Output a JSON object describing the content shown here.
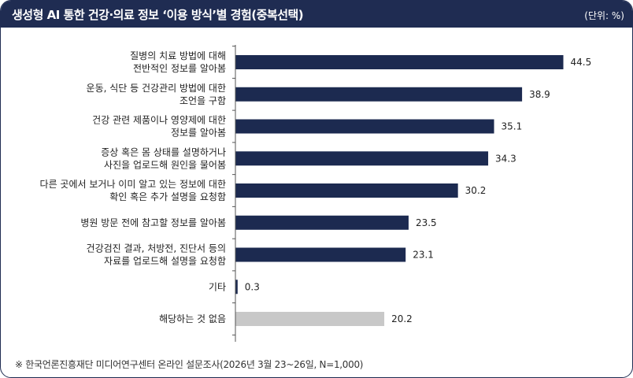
{
  "header": {
    "title": "생성형 AI 통한 건강·의료 정보 ‘이용 방식’별 경험(중복선택)",
    "unit": "(단위: %)"
  },
  "chart_data": {
    "type": "bar",
    "orientation": "horizontal",
    "title": "생성형 AI 통한 건강·의료 정보 ‘이용 방식’별 경험(중복선택)",
    "unit": "(단위: %)",
    "xlim": [
      0,
      50
    ],
    "categories": [
      [
        "질병의 치료 방법에 대해",
        "전반적인 정보를 알아봄"
      ],
      [
        "운동, 식단 등 건강관리 방법에 대한",
        "조언을 구함"
      ],
      [
        "건강 관련 제품이나 영양제에 대한",
        "정보를 알아봄"
      ],
      [
        "증상 혹은 몸 상태를 설명하거나",
        "사진을 업로드해 원인을 물어봄"
      ],
      [
        "다른 곳에서 보거나 이미 알고 있는 정보에 대한",
        "확인 혹은 추가 설명을 요청함"
      ],
      [
        "병원 방문 전에 참고할 정보를 알아봄"
      ],
      [
        "건강검진 결과, 처방전, 진단서 등의",
        "자료를 업로드해 설명을 요청함"
      ],
      [
        "기타"
      ],
      [
        "해당하는 것 없음"
      ]
    ],
    "values": [
      44.5,
      38.9,
      35.1,
      34.3,
      30.2,
      23.5,
      23.1,
      0.3,
      20.2
    ],
    "value_labels": [
      "44.5",
      "38.9",
      "35.1",
      "34.3",
      "30.2",
      "23.5",
      "23.1",
      "0.3",
      "20.2"
    ],
    "bar_colors": [
      "#1c2a50",
      "#1c2a50",
      "#1c2a50",
      "#1c2a50",
      "#1c2a50",
      "#1c2a50",
      "#1c2a50",
      "#1c2a50",
      "#c8c8c8"
    ]
  },
  "footer": {
    "source": "※ 한국언론진흥재단 미디어연구센터 온라인 설문조사(2026년 3월 23~26일, N=1,000)"
  }
}
